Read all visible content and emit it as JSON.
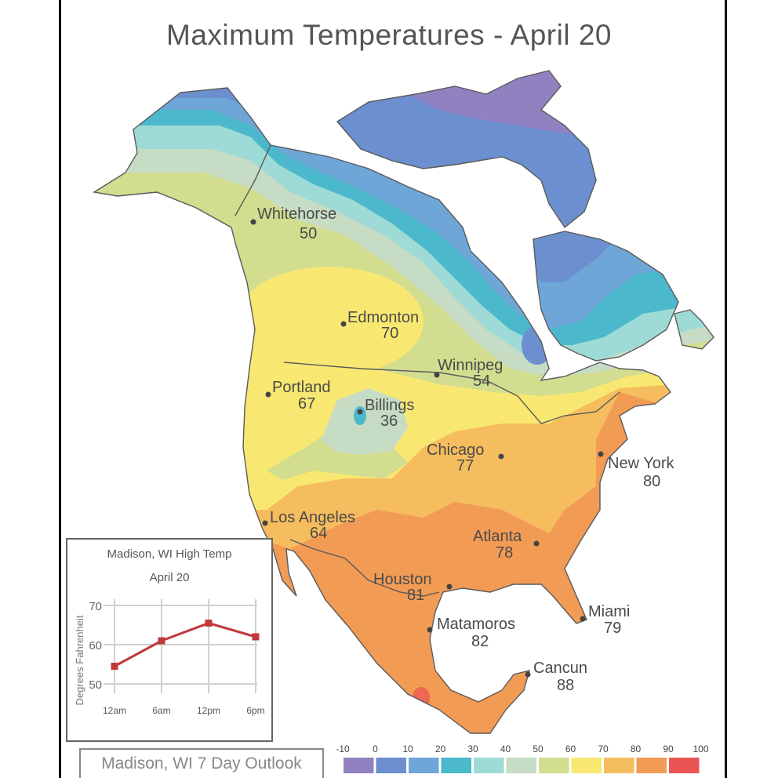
{
  "title": "Maximum Temperatures - April 20",
  "cities": [
    {
      "name": "Whitehorse",
      "temp": "50"
    },
    {
      "name": "Edmonton",
      "temp": "70"
    },
    {
      "name": "Winnipeg",
      "temp": "54"
    },
    {
      "name": "Portland",
      "temp": "67"
    },
    {
      "name": "Billings",
      "temp": "36"
    },
    {
      "name": "Chicago",
      "temp": "77"
    },
    {
      "name": "New York",
      "temp": "80"
    },
    {
      "name": "Los Angeles",
      "temp": "64"
    },
    {
      "name": "Atlanta",
      "temp": "78"
    },
    {
      "name": "Houston",
      "temp": "81"
    },
    {
      "name": "Miami",
      "temp": "79"
    },
    {
      "name": "Matamoros",
      "temp": "82"
    },
    {
      "name": "Cancun",
      "temp": "88"
    }
  ],
  "legend": {
    "ticks": [
      "-10",
      "0",
      "10",
      "20",
      "30",
      "40",
      "50",
      "60",
      "70",
      "80",
      "90",
      "100"
    ],
    "colors": [
      "#9281c1",
      "#6b8fcf",
      "#6ea6d8",
      "#4bb8cc",
      "#9fdbd6",
      "#c6dcc5",
      "#d2dd8f",
      "#f8e872",
      "#f6bd5e",
      "#f29b55",
      "#ec5454"
    ]
  },
  "inset": {
    "title": "Madison, WI High Temp",
    "subtitle": "April 20",
    "chart_data": {
      "type": "line",
      "categories": [
        "12am",
        "6am",
        "12pm",
        "6pm"
      ],
      "x": [
        0,
        6,
        12,
        18
      ],
      "series": [
        {
          "values": [
            54.5,
            61,
            65.5,
            62
          ],
          "color": "#c0393b"
        }
      ],
      "ylabel": "Degrees Fahrenheit",
      "xlabel": "",
      "yticks": [
        "50",
        "60",
        "70"
      ],
      "ylim": [
        50,
        70
      ],
      "grid": true
    }
  },
  "outlook_label": "Madison, WI 7 Day Outlook"
}
